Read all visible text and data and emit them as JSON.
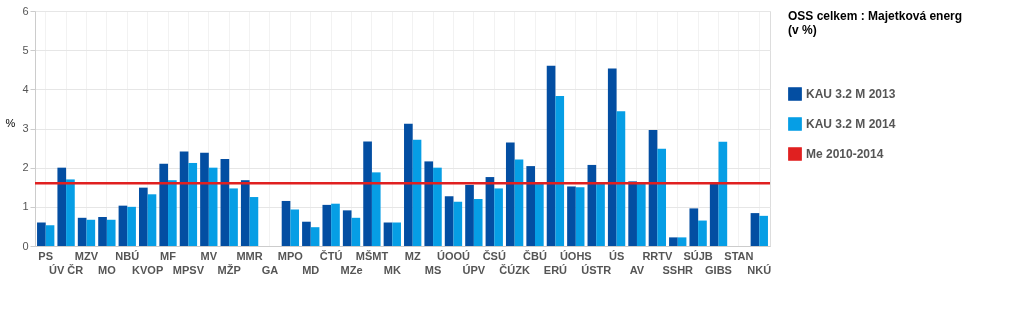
{
  "chart_data": {
    "type": "bar",
    "ylabel": "%",
    "legend_title": "OSS celkem : Majetková energ (v %)",
    "categories": [
      "PS",
      "ÚV ČR",
      "MZV",
      "MO",
      "NBÚ",
      "KVOP",
      "MF",
      "MPSV",
      "MV",
      "MŽP",
      "MMR",
      "GA",
      "MPO",
      "MD",
      "ČTÚ",
      "MZe",
      "MŠMT",
      "MK",
      "MZ",
      "MS",
      "ÚOOÚ",
      "ÚPV",
      "ČSÚ",
      "ČÚZK",
      "ČBÚ",
      "ERÚ",
      "ÚOHS",
      "ÚSTR",
      "ÚS",
      "AV",
      "RRTV",
      "SSHR",
      "SÚJB",
      "GIBS",
      "STAN",
      "NKÚ"
    ],
    "series": [
      {
        "name": "KAU 3.2 M 2013",
        "color": "#034ea2",
        "values": [
          0.6,
          2.0,
          0.72,
          0.74,
          1.03,
          1.49,
          2.1,
          2.41,
          2.38,
          2.22,
          1.68,
          null,
          1.15,
          0.62,
          1.05,
          0.91,
          2.67,
          0.6,
          3.12,
          2.16,
          1.27,
          1.56,
          1.76,
          2.64,
          2.04,
          4.6,
          1.52,
          2.07,
          4.53,
          1.65,
          2.96,
          0.22,
          0.96,
          1.63,
          null,
          0.84
        ]
      },
      {
        "name": "KAU 3.2 M 2014",
        "color": "#069ee5",
        "values": [
          0.53,
          1.7,
          0.67,
          0.67,
          1.0,
          1.32,
          1.68,
          2.12,
          2.0,
          1.47,
          1.25,
          null,
          0.93,
          0.48,
          1.08,
          0.72,
          1.88,
          0.6,
          2.71,
          2.0,
          1.13,
          1.2,
          1.47,
          2.21,
          1.6,
          3.83,
          1.5,
          1.63,
          3.44,
          1.6,
          2.48,
          0.22,
          0.65,
          2.66,
          null,
          0.77
        ]
      }
    ],
    "ref_lines": [
      {
        "axis": "y",
        "value": 1.6,
        "label": "Me 2010-2014",
        "color": "#e02020"
      }
    ],
    "ylim": [
      0,
      6
    ],
    "yticks": [
      0,
      1,
      2,
      3,
      4,
      5,
      6
    ],
    "grid": true,
    "legend": "right"
  }
}
